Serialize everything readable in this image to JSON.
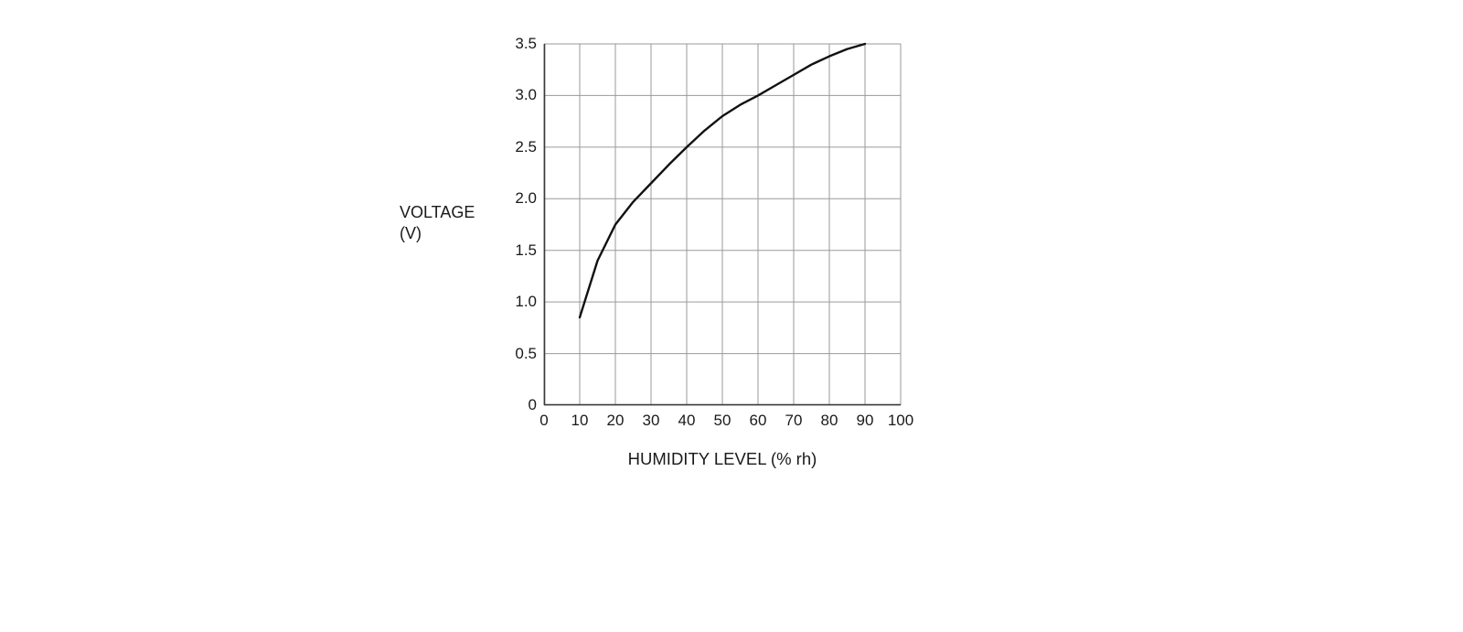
{
  "page": {
    "background": "#ffffff"
  },
  "chart_data": {
    "type": "line",
    "title": "",
    "xlabel": "HUMIDITY LEVEL (% rh)",
    "ylabel": "VOLTAGE (V)",
    "ylabel_lines": [
      "VOLTAGE",
      "(V)"
    ],
    "xlim": [
      0,
      100
    ],
    "ylim": [
      0,
      3.5
    ],
    "x_ticks": [
      0,
      10,
      20,
      30,
      40,
      50,
      60,
      70,
      80,
      90,
      100
    ],
    "x_tick_labels": [
      "0",
      "10",
      "20",
      "30",
      "40",
      "50",
      "60",
      "70",
      "80",
      "90",
      "100"
    ],
    "y_ticks": [
      0,
      0.5,
      1,
      1.5,
      2,
      2.5,
      3,
      3.5
    ],
    "y_tick_labels": [
      "0",
      "0.5",
      "1.0",
      "1.5",
      "2.0",
      "2.5",
      "3.0",
      "3.5"
    ],
    "grid": true,
    "legend": "none",
    "colors": {
      "curve": "#111111",
      "grid": "#9a9a9a",
      "axis": "#3a3a3a",
      "text": "#1a1a1a"
    },
    "series": [
      {
        "name": "output-voltage-vs-humidity",
        "x": [
          10,
          15,
          20,
          25,
          30,
          35,
          40,
          45,
          50,
          55,
          60,
          65,
          70,
          75,
          80,
          85,
          90
        ],
        "y": [
          0.85,
          1.4,
          1.75,
          1.97,
          2.15,
          2.33,
          2.5,
          2.66,
          2.8,
          2.91,
          3.0,
          3.1,
          3.2,
          3.3,
          3.38,
          3.45,
          3.5
        ]
      }
    ]
  }
}
